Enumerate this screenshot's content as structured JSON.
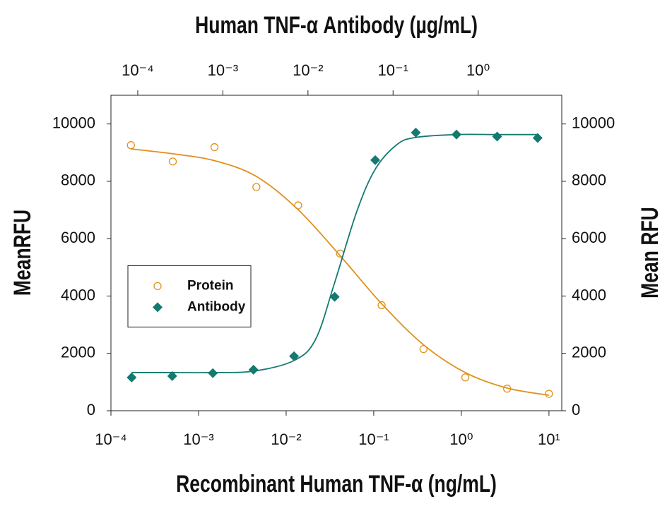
{
  "chart_data": {
    "type": "scatter",
    "xlabel": "Recombinant Human TNF-α (ng/mL)",
    "x2label": "Human TNF-α Antibody (µg/mL)",
    "ylabel": "MeanRFU",
    "y2label": "Mean RFU",
    "xscale": "log",
    "xlim": [
      0.0001,
      14
    ],
    "xticks": [
      {
        "value": 0.0001,
        "label": "10⁻⁴"
      },
      {
        "value": 0.001,
        "label": "10⁻³"
      },
      {
        "value": 0.01,
        "label": "10⁻²"
      },
      {
        "value": 0.1,
        "label": "10⁻¹"
      },
      {
        "value": 1,
        "label": "10⁰"
      },
      {
        "value": 10,
        "label": "10¹"
      }
    ],
    "x2lim": [
      4.84e-05,
      9.6
    ],
    "x2ticks": [
      {
        "value": 0.0001,
        "label": "10⁻⁴"
      },
      {
        "value": 0.001,
        "label": "10⁻³"
      },
      {
        "value": 0.01,
        "label": "10⁻²"
      },
      {
        "value": 0.1,
        "label": "10⁻¹"
      },
      {
        "value": 1,
        "label": "10⁰"
      }
    ],
    "ylim": [
      0,
      11000
    ],
    "yticks": [
      0,
      2000,
      4000,
      6000,
      8000,
      10000
    ],
    "y2lim": [
      0,
      11000
    ],
    "y2ticks": [
      0,
      2000,
      4000,
      6000,
      8000,
      10000
    ],
    "legend": "center left",
    "series": [
      {
        "name": "Protein",
        "color": "#e0901a",
        "marker": "circle",
        "xaxis": "x",
        "x": [
          0.000169,
          0.000508,
          0.00152,
          0.00457,
          0.0137,
          0.0412,
          0.123,
          0.37,
          1.11,
          3.33,
          10
        ],
        "values": [
          9260,
          8690,
          9190,
          7800,
          7160,
          5480,
          3680,
          2150,
          1160,
          770,
          590
        ],
        "fit": {
          "x": [
            0.000169,
            0.000508,
            0.00152,
            0.00457,
            0.0137,
            0.0412,
            0.123,
            0.37,
            1.11,
            3.33,
            10
          ],
          "values": [
            9130,
            8960,
            8720,
            8170,
            7010,
            5410,
            3730,
            2300,
            1330,
            790,
            540
          ]
        }
      },
      {
        "name": "Antibody",
        "color": "#147a70",
        "marker": "diamond",
        "xaxis": "x2",
        "x": [
          8.47e-05,
          0.000254,
          0.000762,
          0.00229,
          0.00686,
          0.0206,
          0.0617,
          0.185,
          0.556,
          1.67,
          5
        ],
        "values": [
          1160,
          1210,
          1310,
          1430,
          1900,
          3970,
          8740,
          9700,
          9630,
          9560,
          9510
        ],
        "fit": {
          "x": [
            8.47e-05,
            0.000254,
            0.000762,
            0.00229,
            0.00686,
            0.0123,
            0.0206,
            0.0374,
            0.0617,
            0.111,
            0.185,
            0.556,
            1.67,
            5
          ],
          "values": [
            1330,
            1330,
            1330,
            1380,
            1750,
            2490,
            4470,
            6940,
            8420,
            9280,
            9530,
            9630,
            9630,
            9630
          ]
        }
      }
    ]
  }
}
